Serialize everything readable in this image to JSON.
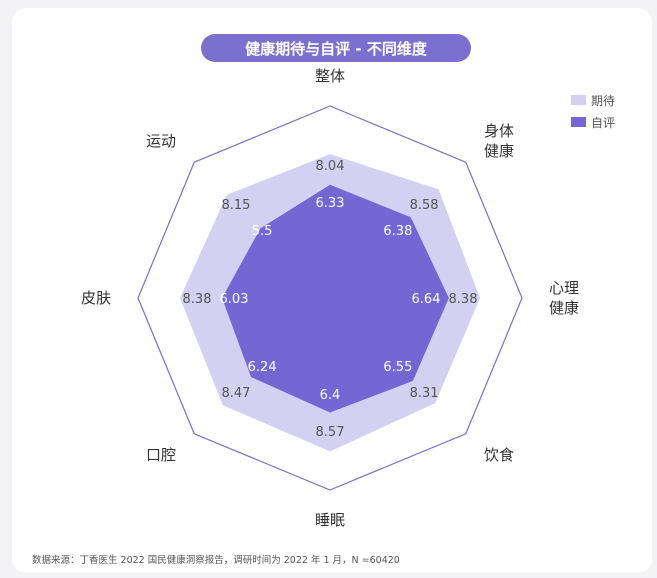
{
  "chart_data": {
    "type": "radar",
    "title": "健康期待与自评 - 不同维度",
    "dimensions": [
      {
        "label": [
          "整体"
        ]
      },
      {
        "label": [
          "身体",
          "健康"
        ]
      },
      {
        "label": [
          "心理",
          "健康"
        ]
      },
      {
        "label": [
          "饮食"
        ]
      },
      {
        "label": [
          "睡眠"
        ]
      },
      {
        "label": [
          "口腔"
        ]
      },
      {
        "label": [
          "皮肤"
        ]
      },
      {
        "label": [
          "运动"
        ]
      }
    ],
    "series": [
      {
        "name": "期待",
        "color": "#d4d0f2",
        "values": [
          8.04,
          8.58,
          8.38,
          8.31,
          8.57,
          8.47,
          8.38,
          8.15
        ]
      },
      {
        "name": "自评",
        "color": "#7467d3",
        "values": [
          6.33,
          6.38,
          6.64,
          6.55,
          6.4,
          6.24,
          6.03,
          5.5
        ]
      }
    ],
    "value_labels": {
      "expected": [
        "8.04",
        "8.58",
        "8.38",
        "8.31",
        "8.57",
        "8.47",
        "8.38",
        "8.15"
      ],
      "self": [
        "6.33",
        "6.38",
        "6.64",
        "6.55",
        "6.4",
        "6.24",
        "6.03",
        "5.5"
      ]
    }
  },
  "legend": [
    {
      "label": "期待",
      "color": "#d4d0f2"
    },
    {
      "label": "自评",
      "color": "#7467d3"
    }
  ],
  "source": "数据来源：丁香医生 2022 国民健康洞察报告，调研时间为 2022 年 1 月，N =60420",
  "colors": {
    "title_bg": "#7b6fd0",
    "outline": "#7a70c8"
  }
}
